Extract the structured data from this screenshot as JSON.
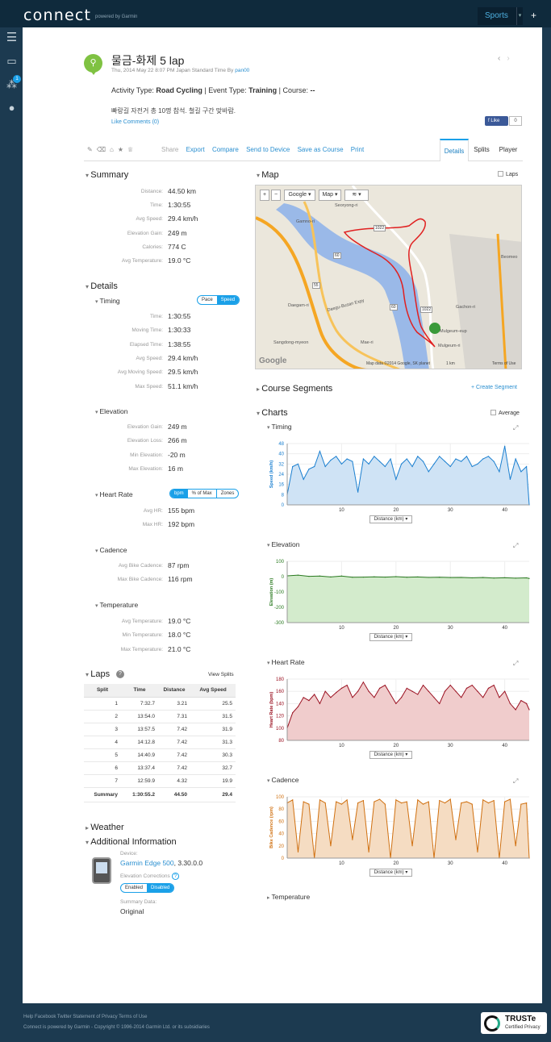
{
  "header": {
    "logo": "connect",
    "logo_sub": "powered by Garmin",
    "sports": "Sports",
    "plus": "+",
    "nav_badge": "1"
  },
  "activity": {
    "title": "물금-화제 5 lap",
    "date": "Thu, 2014 May 22 8:07 PM Japan Standard Time By",
    "user": "pan00",
    "type_label": "Activity Type:",
    "type": "Road Cycling",
    "event_label": "| Event Type:",
    "event": "Training",
    "course_label": "| Course:",
    "course": "--",
    "note": "빠랑길 자전거 총 10명 참석. 철길 구간 맞바람.",
    "like_comments": "Like Comments (0)",
    "fb_like": "Like",
    "fb_count": "0"
  },
  "toolbar": {
    "share": "Share",
    "export": "Export",
    "compare": "Compare",
    "send": "Send to Device",
    "save": "Save as Course",
    "print": "Print"
  },
  "tabs": {
    "details": "Details",
    "splits": "Splits",
    "player": "Player"
  },
  "summary": {
    "title": "Summary",
    "rows": [
      {
        "label": "Distance:",
        "value": "44.50 km"
      },
      {
        "label": "Time:",
        "value": "1:30:55"
      },
      {
        "label": "Avg Speed:",
        "value": "29.4 km/h"
      },
      {
        "label": "Elevation Gain:",
        "value": "249 m"
      },
      {
        "label": "Calories:",
        "value": "774 C"
      },
      {
        "label": "Avg Temperature:",
        "value": "19.0 °C"
      }
    ]
  },
  "details": {
    "title": "Details",
    "timing": {
      "title": "Timing",
      "pace": "Pace",
      "speed": "Speed",
      "rows": [
        {
          "label": "Time:",
          "value": "1:30:55"
        },
        {
          "label": "Moving Time:",
          "value": "1:30:33"
        },
        {
          "label": "Elapsed Time:",
          "value": "1:38:55"
        },
        {
          "label": "Avg Speed:",
          "value": "29.4 km/h"
        },
        {
          "label": "Avg Moving Speed:",
          "value": "29.5 km/h"
        },
        {
          "label": "Max Speed:",
          "value": "51.1 km/h"
        }
      ]
    },
    "elevation": {
      "title": "Elevation",
      "rows": [
        {
          "label": "Elevation Gain:",
          "value": "249 m"
        },
        {
          "label": "Elevation Loss:",
          "value": "266 m"
        },
        {
          "label": "Min Elevation:",
          "value": "-20 m"
        },
        {
          "label": "Max Elevation:",
          "value": "16 m"
        }
      ]
    },
    "heart": {
      "title": "Heart Rate",
      "bpm": "bpm",
      "pct": "% of Max",
      "zones": "Zones",
      "rows": [
        {
          "label": "Avg HR:",
          "value": "155 bpm"
        },
        {
          "label": "Max HR:",
          "value": "192 bpm"
        }
      ]
    },
    "cadence": {
      "title": "Cadence",
      "rows": [
        {
          "label": "Avg Bike Cadence:",
          "value": "87 rpm"
        },
        {
          "label": "Max Bike Cadence:",
          "value": "116 rpm"
        }
      ]
    },
    "temperature": {
      "title": "Temperature",
      "rows": [
        {
          "label": "Avg Temperature:",
          "value": "19.0 °C"
        },
        {
          "label": "Min Temperature:",
          "value": "18.0 °C"
        },
        {
          "label": "Max Temperature:",
          "value": "21.0 °C"
        }
      ]
    }
  },
  "laps": {
    "title": "Laps",
    "view_splits": "View Splits",
    "headers": [
      "Split",
      "Time",
      "Distance",
      "Avg Speed"
    ],
    "rows": [
      [
        "1",
        "7:32.7",
        "3.21",
        "25.5"
      ],
      [
        "2",
        "13:54.0",
        "7.31",
        "31.5"
      ],
      [
        "3",
        "13:57.5",
        "7.42",
        "31.9"
      ],
      [
        "4",
        "14:12.8",
        "7.42",
        "31.3"
      ],
      [
        "5",
        "14:40.9",
        "7.42",
        "30.3"
      ],
      [
        "6",
        "13:37.4",
        "7.42",
        "32.7"
      ],
      [
        "7",
        "12:59.9",
        "4.32",
        "19.9"
      ]
    ],
    "summary": [
      "Summary",
      "1:30:55.2",
      "44.50",
      "29.4"
    ]
  },
  "weather": {
    "title": "Weather"
  },
  "additional": {
    "title": "Additional Information",
    "device_label": "Device:",
    "device": "Garmin Edge 500",
    "device_ver": ", 3.30.0.0",
    "elev_corr": "Elevation Corrections",
    "enabled": "Enabled",
    "disabled": "Disabled",
    "summary_label": "Summary Data:",
    "summary_val": "Original"
  },
  "map": {
    "title": "Map",
    "laps": "Laps",
    "google": "Google",
    "map": "Map",
    "places": [
      "Seoryong-ri",
      "Gamno-ri",
      "Daegam-ri",
      "Sangdong-myeon",
      "Mae-ri",
      "Gachon-ri",
      "Mulgeum-eup",
      "Mulgeum-ri",
      "Beomeo"
    ],
    "roads": [
      "1022",
      "60",
      "55",
      "1022",
      "60"
    ],
    "road_name": "Daegu-Busan Expy",
    "copyright": "Map data ©2014 Google, SK planet",
    "scale": "1 km",
    "terms": "Terms of Use",
    "logo": "Google"
  },
  "course_segments": {
    "title": "Course Segments",
    "create": "+ Create Segment"
  },
  "charts_section": {
    "title": "Charts",
    "average": "Average",
    "temperature": "Temperature",
    "distance": "Distance (km)"
  },
  "chart_data": [
    {
      "type": "area",
      "title": "Timing",
      "ylabel": "Speed (km/h)",
      "xlabel": "Distance (km)",
      "color": "#1a7fd0",
      "fill": "#cfe3f5",
      "ylim": [
        0,
        48
      ],
      "yticks": [
        0,
        8,
        16,
        24,
        32,
        40,
        48
      ],
      "xticks": [
        10,
        20,
        30,
        40
      ],
      "xlim": [
        0,
        44.5
      ],
      "x": [
        0,
        1,
        2,
        3,
        4,
        5,
        6,
        7,
        8,
        9,
        10,
        11,
        12,
        13,
        14,
        15,
        16,
        17,
        18,
        19,
        20,
        21,
        22,
        23,
        24,
        25,
        26,
        27,
        28,
        29,
        30,
        31,
        32,
        33,
        34,
        35,
        36,
        37,
        38,
        39,
        40,
        41,
        42,
        43,
        44,
        44.5
      ],
      "values": [
        8,
        30,
        32,
        20,
        28,
        30,
        42,
        30,
        35,
        38,
        32,
        36,
        34,
        10,
        36,
        32,
        38,
        34,
        30,
        36,
        20,
        32,
        36,
        30,
        38,
        34,
        26,
        32,
        38,
        34,
        30,
        36,
        34,
        38,
        30,
        32,
        36,
        38,
        34,
        26,
        46,
        20,
        36,
        26,
        30,
        0
      ]
    },
    {
      "type": "area",
      "title": "Elevation",
      "ylabel": "Elevation (m)",
      "xlabel": "Distance (km)",
      "color": "#2a7a20",
      "fill": "#d3ebcc",
      "ylim": [
        -300,
        100
      ],
      "yticks": [
        -300,
        -200,
        -100,
        0,
        100
      ],
      "xticks": [
        10,
        20,
        30,
        40
      ],
      "xlim": [
        0,
        44.5
      ],
      "x": [
        0,
        2,
        4,
        6,
        8,
        10,
        12,
        14,
        16,
        18,
        20,
        22,
        24,
        26,
        28,
        30,
        32,
        34,
        36,
        38,
        40,
        42,
        44,
        44.5
      ],
      "values": [
        5,
        10,
        2,
        4,
        -2,
        4,
        -4,
        -3,
        -1,
        -3,
        0,
        -4,
        -2,
        -5,
        -4,
        -6,
        -5,
        -8,
        -6,
        -9,
        -7,
        -10,
        -8,
        -12
      ]
    },
    {
      "type": "area",
      "title": "Heart Rate",
      "ylabel": "Heart Rate (bpm)",
      "xlabel": "Distance (km)",
      "color": "#9a1020",
      "fill": "#f0cccc",
      "ylim": [
        80,
        180
      ],
      "yticks": [
        80,
        100,
        120,
        140,
        160,
        180
      ],
      "xticks": [
        10,
        20,
        30,
        40
      ],
      "xlim": [
        0,
        44.5
      ],
      "x": [
        0,
        1,
        2,
        3,
        4,
        5,
        6,
        7,
        8,
        9,
        10,
        11,
        12,
        13,
        14,
        15,
        16,
        17,
        18,
        19,
        20,
        21,
        22,
        23,
        24,
        25,
        26,
        27,
        28,
        29,
        30,
        31,
        32,
        33,
        34,
        35,
        36,
        37,
        38,
        39,
        40,
        41,
        42,
        43,
        44,
        44.5
      ],
      "values": [
        100,
        125,
        135,
        150,
        145,
        155,
        140,
        160,
        150,
        158,
        165,
        170,
        150,
        160,
        175,
        160,
        150,
        165,
        170,
        155,
        140,
        150,
        165,
        160,
        155,
        170,
        160,
        150,
        140,
        160,
        170,
        160,
        150,
        165,
        170,
        160,
        150,
        165,
        170,
        150,
        160,
        140,
        130,
        145,
        140,
        130
      ]
    },
    {
      "type": "area",
      "title": "Cadence",
      "ylabel": "Bike Cadence (rpm)",
      "xlabel": "Distance (km)",
      "color": "#d07010",
      "fill": "#f5dcc2",
      "ylim": [
        0,
        100
      ],
      "yticks": [
        0,
        20,
        40,
        60,
        80,
        100
      ],
      "xticks": [
        10,
        20,
        30,
        40
      ],
      "xlim": [
        0,
        44.5
      ],
      "x": [
        0,
        1,
        2,
        3,
        4,
        5,
        6,
        7,
        8,
        9,
        10,
        11,
        12,
        13,
        14,
        15,
        16,
        17,
        18,
        19,
        20,
        21,
        22,
        23,
        24,
        25,
        26,
        27,
        28,
        29,
        30,
        31,
        32,
        33,
        34,
        35,
        36,
        37,
        38,
        39,
        40,
        41,
        42,
        43,
        44,
        44.5
      ],
      "values": [
        90,
        95,
        10,
        92,
        88,
        0,
        95,
        90,
        20,
        92,
        88,
        95,
        30,
        90,
        94,
        10,
        92,
        96,
        88,
        0,
        95,
        90,
        92,
        20,
        95,
        88,
        92,
        0,
        94,
        90,
        96,
        30,
        90,
        92,
        88,
        10,
        95,
        90,
        94,
        0,
        92,
        96,
        20,
        88,
        90,
        0
      ]
    }
  ],
  "footer": {
    "links": "Help Facebook Twitter Statement of Privacy Terms of Use",
    "copyright": "Connect is powered by Garmin - Copyright © 1996-2014 Garmin Ltd. or its subsidiaries",
    "truste": "TRUSTe",
    "truste_sub": "Certified Privacy"
  }
}
